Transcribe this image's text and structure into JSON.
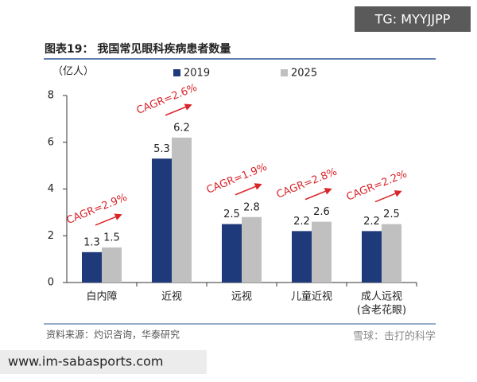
{
  "chart_data": {
    "type": "bar",
    "title": "图表19： 我国常见眼科疾病患者数量",
    "y_label": "（亿人）",
    "categories": [
      "白内障",
      "近视",
      "远视",
      "儿童近视",
      [
        "成人远视",
        "(含老花眼)"
      ]
    ],
    "series": [
      {
        "name": "2019",
        "color": "#1f3a7a",
        "values": [
          1.3,
          5.3,
          2.5,
          2.2,
          2.2
        ]
      },
      {
        "name": "2025",
        "color": "#c0c0c0",
        "values": [
          1.5,
          6.2,
          2.8,
          2.6,
          2.5
        ]
      }
    ],
    "annotations": [
      "CAGR=2.9%",
      "CAGR=2.6%",
      "CAGR=1.9%",
      "CAGR=2.8%",
      "CAGR=2.2%"
    ],
    "annotation_color": "#d9262b",
    "ylim": [
      0,
      8
    ],
    "yticks": [
      0,
      2,
      4,
      6,
      8
    ],
    "grid": false,
    "legend": "top"
  },
  "source": "资料来源：灼识咨询，华泰研究",
  "watermark_top": "TG: MYYJJPP",
  "watermark_bottom": "雪球：击打的科学",
  "site_url": "www.im-sabasports.com"
}
